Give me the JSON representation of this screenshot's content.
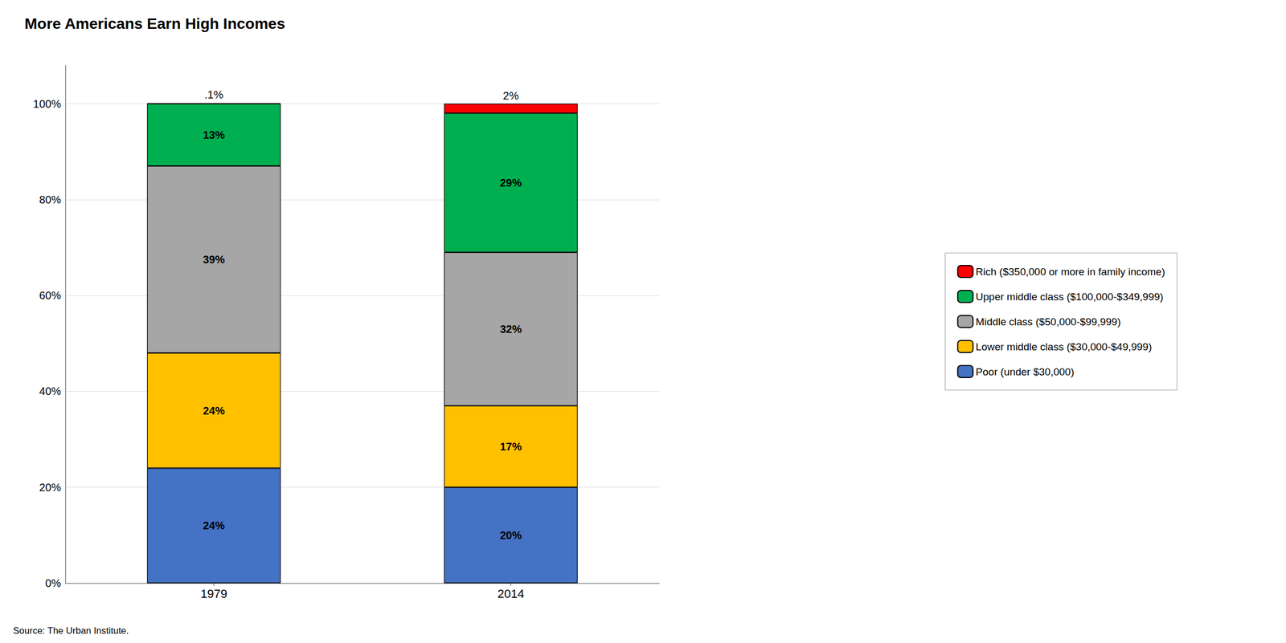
{
  "chart_data": {
    "type": "bar",
    "title": "More Americans Earn High Incomes",
    "stacked": true,
    "categories": [
      "1979",
      "2014"
    ],
    "series": [
      {
        "name": "Poor (under $30,000)",
        "color": "#4472C4",
        "values": [
          24,
          20
        ],
        "value_labels": [
          "24%",
          "20%"
        ]
      },
      {
        "name": "Lower middle class ($30,000-$49,999)",
        "color": "#FFC000",
        "values": [
          24,
          17
        ],
        "value_labels": [
          "24%",
          "17%"
        ]
      },
      {
        "name": "Middle class ($50,000-$99,999)",
        "color": "#A6A6A6",
        "values": [
          39,
          32
        ],
        "value_labels": [
          "39%",
          "32%"
        ]
      },
      {
        "name": "Upper middle class ($100,000-$349,999)",
        "color": "#00B050",
        "values": [
          13,
          29
        ],
        "value_labels": [
          "13%",
          "29%"
        ]
      },
      {
        "name": "Rich ($350,000 or more in family income)",
        "color": "#FF0000",
        "values": [
          0.1,
          2
        ],
        "value_labels": [
          ".1%",
          "2%"
        ]
      }
    ],
    "data_labels": true,
    "ylim": [
      0,
      108
    ],
    "yticks": [
      {
        "value": 0,
        "label": "0%"
      },
      {
        "value": 20,
        "label": "20%"
      },
      {
        "value": 40,
        "label": "40%"
      },
      {
        "value": 60,
        "label": "60%"
      },
      {
        "value": 80,
        "label": "80%"
      },
      {
        "value": 100,
        "label": "100%"
      }
    ],
    "grid": true,
    "legend": "right",
    "annotations": [
      "Source: The Urban Institute."
    ]
  }
}
